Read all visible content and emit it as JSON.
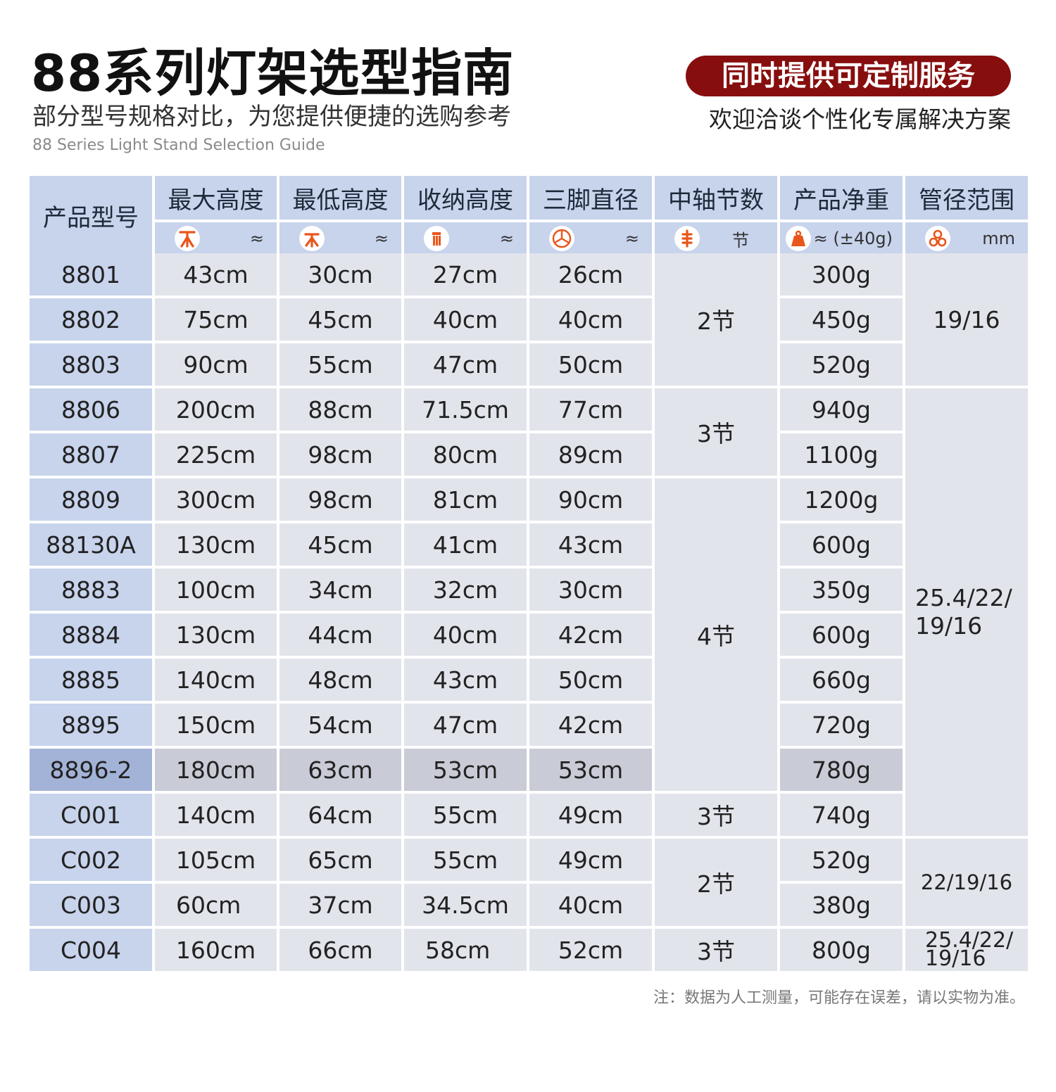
{
  "header": {
    "title": "88系列灯架选型指南",
    "subtitle": "部分型号规格对比，为您提供便捷的选购参考",
    "subtitle_en": "88 Series Light Stand Selection Guide",
    "custom_badge": "同时提供可定制服务",
    "custom_sub": "欢迎洽谈个性化专属解决方案"
  },
  "table": {
    "columns": [
      {
        "title": "产品型号"
      },
      {
        "title": "最大高度",
        "icon": "max-height-icon",
        "unit": "≈"
      },
      {
        "title": "最低高度",
        "icon": "min-height-icon",
        "unit": "≈"
      },
      {
        "title": "收纳高度",
        "icon": "folded-height-icon",
        "unit": "≈"
      },
      {
        "title": "三脚直径",
        "icon": "tripod-diameter-icon",
        "unit": "≈"
      },
      {
        "title": "中轴节数",
        "icon": "section-icon",
        "unit": "节"
      },
      {
        "title": "产品净重",
        "icon": "weight-icon",
        "unit": "≈ (±40g)"
      },
      {
        "title": "管径范围",
        "icon": "tube-icon",
        "unit": "mm"
      }
    ],
    "rows": [
      {
        "model": "8801",
        "max": "43cm",
        "min": "30cm",
        "fold": "27cm",
        "dia": "26cm",
        "weight": "300g"
      },
      {
        "model": "8802",
        "max": "75cm",
        "min": "45cm",
        "fold": "40cm",
        "dia": "40cm",
        "weight": "450g"
      },
      {
        "model": "8803",
        "max": "90cm",
        "min": "55cm",
        "fold": "47cm",
        "dia": "50cm",
        "weight": "520g"
      },
      {
        "model": "8806",
        "max": "200cm",
        "min": "88cm",
        "fold": "71.5cm",
        "dia": "77cm",
        "weight": "940g"
      },
      {
        "model": "8807",
        "max": "225cm",
        "min": "98cm",
        "fold": "80cm",
        "dia": "89cm",
        "weight": "1100g"
      },
      {
        "model": "8809",
        "max": "300cm",
        "min": "98cm",
        "fold": "81cm",
        "dia": "90cm",
        "weight": "1200g"
      },
      {
        "model": "88130A",
        "max": "130cm",
        "min": "45cm",
        "fold": "41cm",
        "dia": "43cm",
        "weight": "600g"
      },
      {
        "model": "8883",
        "max": "100cm",
        "min": "34cm",
        "fold": "32cm",
        "dia": "30cm",
        "weight": "350g"
      },
      {
        "model": "8884",
        "max": "130cm",
        "min": "44cm",
        "fold": "40cm",
        "dia": "42cm",
        "weight": "600g"
      },
      {
        "model": "8885",
        "max": "140cm",
        "min": "48cm",
        "fold": "43cm",
        "dia": "50cm",
        "weight": "660g"
      },
      {
        "model": "8895",
        "max": "150cm",
        "min": "54cm",
        "fold": "47cm",
        "dia": "42cm",
        "weight": "720g"
      },
      {
        "model": "8896-2",
        "max": "180cm",
        "min": "63cm",
        "fold": "53cm",
        "dia": "53cm",
        "weight": "780g"
      },
      {
        "model": "C001",
        "max": "140cm",
        "min": "64cm",
        "fold": "55cm",
        "dia": "49cm",
        "weight": "740g"
      },
      {
        "model": "C002",
        "max": "105cm",
        "min": "65cm",
        "fold": "55cm",
        "dia": "49cm",
        "weight": "520g"
      },
      {
        "model": "C003",
        "max": "60cm",
        "min": "37cm",
        "fold": "34.5cm",
        "dia": "40cm",
        "weight": "380g"
      },
      {
        "model": "C004",
        "max": "160cm",
        "min": "66cm",
        "fold": "58cm",
        "dia": "52cm",
        "weight": "800g"
      }
    ],
    "sections": [
      {
        "rows": [
          0,
          1,
          2
        ],
        "text": "2节"
      },
      {
        "rows": [
          3,
          4
        ],
        "text": "3节"
      },
      {
        "rows": [
          5,
          6,
          7,
          8,
          9,
          10,
          11
        ],
        "text": "4节"
      },
      {
        "rows": [
          12
        ],
        "text": "3节"
      },
      {
        "rows": [
          13,
          14
        ],
        "text": "2节"
      },
      {
        "rows": [
          15
        ],
        "text": "3节"
      }
    ],
    "pipes": [
      {
        "rows": [
          0,
          1,
          2
        ],
        "lines": [
          "19/16"
        ]
      },
      {
        "rows": [
          3,
          4,
          5,
          6,
          7,
          8,
          9,
          10,
          11,
          12
        ],
        "lines": [
          "25.4/22/",
          "19/16"
        ]
      },
      {
        "rows": [
          13,
          14
        ],
        "lines": [
          "22/19/16"
        ]
      },
      {
        "rows": [
          15
        ],
        "lines": [
          "25.4/22/",
          "19/16"
        ]
      }
    ],
    "highlight_row": "8896-2",
    "icon_color": "#e8561b",
    "header_color": "#c8d3ec",
    "body_color": "#e2e4ec"
  },
  "note": "注：数据为人工测量，可能存在误差，请以实物为准。"
}
